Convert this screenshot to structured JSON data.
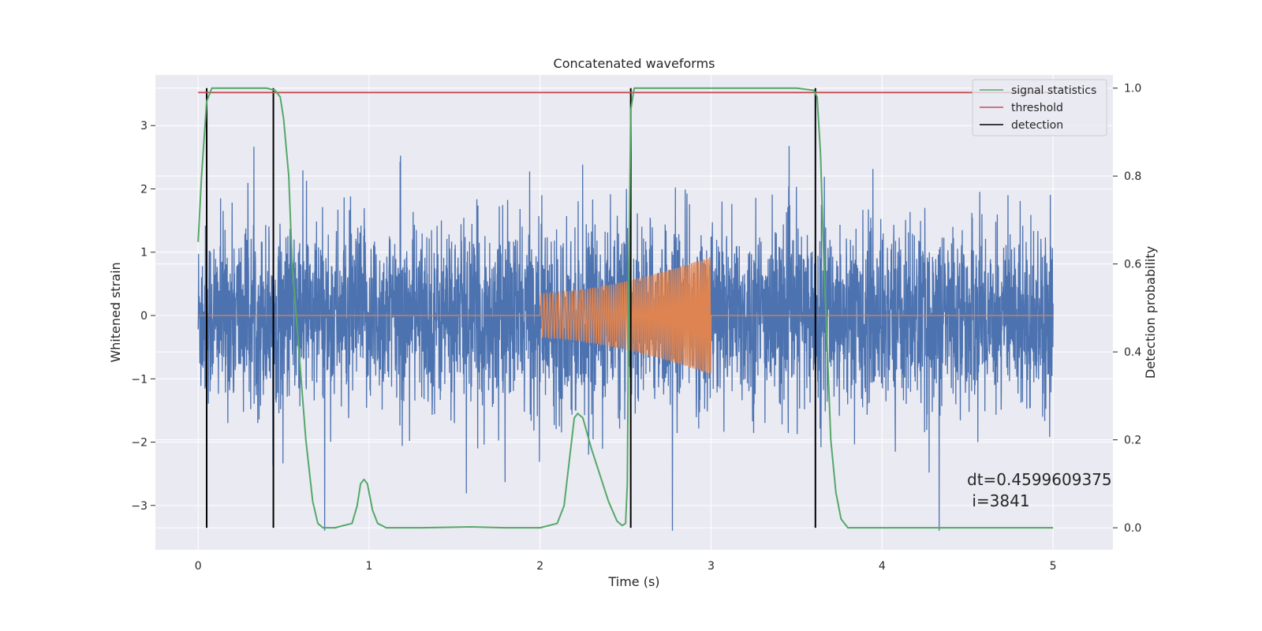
{
  "chart_data": {
    "type": "line",
    "title": "Concatenated waveforms",
    "xlabel": "Time (s)",
    "ylabel": "Whitened strain",
    "y2label": "Detection probability",
    "xlim": [
      -0.25,
      5.35
    ],
    "ylim": [
      -3.7,
      3.8
    ],
    "y2lim": [
      -0.05,
      1.03
    ],
    "xticks": [
      0,
      1,
      2,
      3,
      4,
      5
    ],
    "yticks": [
      -3,
      -2,
      -1,
      0,
      1,
      2,
      3
    ],
    "y2ticks": [
      0.0,
      0.2,
      0.4,
      0.6,
      0.8,
      1.0
    ],
    "grid": true,
    "legend_position": "top-right",
    "colors": {
      "background": "#eaeaf2",
      "noise": "#4c72b0",
      "signal": "#dd8452",
      "statistics": "#55a868",
      "threshold": "#c44e52",
      "detection": "#000000"
    },
    "series": [
      {
        "name": "",
        "role": "noisy strain",
        "axis": "left",
        "x_range": [
          0,
          5
        ],
        "typical_amplitude": 0.7,
        "peak_amplitude": 3.4
      },
      {
        "name": "",
        "role": "injected chirp",
        "axis": "left",
        "x_range": [
          2,
          3
        ],
        "start_amplitude": 0.35,
        "end_amplitude": 0.93
      },
      {
        "name": "signal statistics",
        "axis": "right",
        "x": [
          0.0,
          0.02,
          0.05,
          0.08,
          0.1,
          0.15,
          0.3,
          0.4,
          0.45,
          0.48,
          0.5,
          0.53,
          0.55,
          0.58,
          0.6,
          0.63,
          0.67,
          0.7,
          0.73,
          0.8,
          0.9,
          0.93,
          0.95,
          0.97,
          0.99,
          1.02,
          1.05,
          1.1,
          1.3,
          1.6,
          1.8,
          2.0,
          2.1,
          2.14,
          2.17,
          2.2,
          2.22,
          2.25,
          2.3,
          2.35,
          2.4,
          2.45,
          2.48,
          2.5,
          2.51,
          2.52,
          2.53,
          2.55,
          2.6,
          3.0,
          3.5,
          3.6,
          3.62,
          3.64,
          3.66,
          3.68,
          3.7,
          3.73,
          3.76,
          3.8,
          4.0,
          4.5,
          5.0
        ],
        "y": [
          0.65,
          0.8,
          0.97,
          1.0,
          1.0,
          1.0,
          1.0,
          1.0,
          0.995,
          0.98,
          0.93,
          0.8,
          0.6,
          0.45,
          0.35,
          0.2,
          0.06,
          0.01,
          0.0,
          0.0,
          0.01,
          0.05,
          0.1,
          0.11,
          0.1,
          0.04,
          0.01,
          0.0,
          0.0,
          0.002,
          0.0,
          0.0,
          0.01,
          0.05,
          0.15,
          0.25,
          0.26,
          0.25,
          0.18,
          0.12,
          0.06,
          0.015,
          0.005,
          0.01,
          0.1,
          0.6,
          0.95,
          1.0,
          1.0,
          1.0,
          1.0,
          0.995,
          0.98,
          0.85,
          0.6,
          0.4,
          0.2,
          0.08,
          0.02,
          0.0,
          0.0,
          0.0,
          0.0
        ]
      },
      {
        "name": "threshold",
        "axis": "right",
        "x": [
          0,
          5
        ],
        "y": [
          0.99,
          0.99
        ]
      }
    ],
    "detections": {
      "name": "detection",
      "x": [
        0.05,
        0.44,
        2.53,
        3.61
      ]
    },
    "annotation": {
      "line1": "dt=0.4599609375",
      "line2": " i=3841",
      "x": 4.5,
      "y": -2.7
    }
  }
}
